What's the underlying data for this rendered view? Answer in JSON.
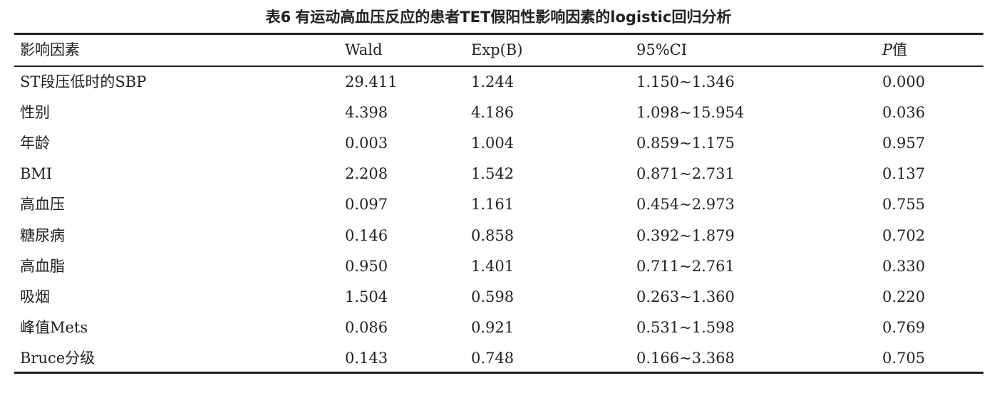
{
  "table": {
    "caption_num": "表6",
    "caption_text": "有运动高血压反应的患者TET假阳性影响因素的logistic回归分析",
    "headers": {
      "factor": "影响因素",
      "wald": "Wald",
      "expb": "Exp(B)",
      "ci": "95%CI",
      "p_letter": "P",
      "p_suffix": "值"
    },
    "rows": [
      {
        "factor": "ST段压低时的SBP",
        "wald": "29.411",
        "expb": "1.244",
        "ci": "1.150~1.346",
        "p": "0.000"
      },
      {
        "factor": "性别",
        "wald": "4.398",
        "expb": "4.186",
        "ci": "1.098~15.954",
        "p": "0.036"
      },
      {
        "factor": "年龄",
        "wald": "0.003",
        "expb": "1.004",
        "ci": "0.859~1.175",
        "p": "0.957"
      },
      {
        "factor": "BMI",
        "wald": "2.208",
        "expb": "1.542",
        "ci": "0.871~2.731",
        "p": "0.137"
      },
      {
        "factor": "高血压",
        "wald": "0.097",
        "expb": "1.161",
        "ci": "0.454~2.973",
        "p": "0.755"
      },
      {
        "factor": "糖尿病",
        "wald": "0.146",
        "expb": "0.858",
        "ci": "0.392~1.879",
        "p": "0.702"
      },
      {
        "factor": "高血脂",
        "wald": "0.950",
        "expb": "1.401",
        "ci": "0.711~2.761",
        "p": "0.330"
      },
      {
        "factor": "吸烟",
        "wald": "1.504",
        "expb": "0.598",
        "ci": "0.263~1.360",
        "p": "0.220"
      },
      {
        "factor": "峰值Mets",
        "wald": "0.086",
        "expb": "0.921",
        "ci": "0.531~1.598",
        "p": "0.769"
      },
      {
        "factor": "Bruce分级",
        "wald": "0.143",
        "expb": "0.748",
        "ci": "0.166~3.368",
        "p": "0.705"
      }
    ]
  }
}
